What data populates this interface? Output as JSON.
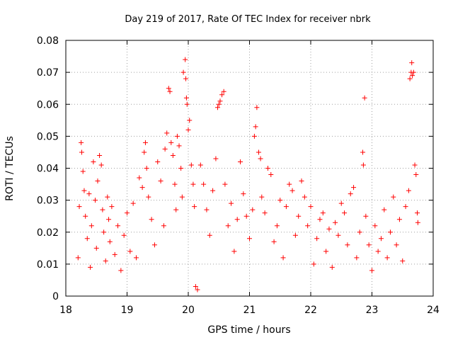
{
  "chart_data": {
    "type": "scatter",
    "title": "Day 219 of 2017, Rate Of TEC Index for receiver nbrk",
    "xlabel": "GPS time / hours",
    "ylabel": "ROTI / TECUs",
    "xlim": [
      18,
      24
    ],
    "ylim": [
      0,
      0.08
    ],
    "xticks": [
      18,
      19,
      20,
      21,
      22,
      23,
      24
    ],
    "xtick_labels": [
      "18",
      "19",
      "20",
      "21",
      "22",
      "23",
      "24"
    ],
    "yticks": [
      0,
      0.01,
      0.02,
      0.03,
      0.04,
      0.05,
      0.06,
      0.07,
      0.08
    ],
    "ytick_labels": [
      "0",
      "0.01",
      "0.02",
      "0.03",
      "0.04",
      "0.05",
      "0.06",
      "0.07",
      "0.08"
    ],
    "grid": true,
    "marker": "+",
    "color": "#ff0000",
    "series": [
      {
        "name": "ROTI",
        "points": [
          [
            18.2,
            0.012
          ],
          [
            18.22,
            0.028
          ],
          [
            18.25,
            0.048
          ],
          [
            18.26,
            0.045
          ],
          [
            18.28,
            0.039
          ],
          [
            18.3,
            0.033
          ],
          [
            18.32,
            0.025
          ],
          [
            18.35,
            0.018
          ],
          [
            18.38,
            0.032
          ],
          [
            18.4,
            0.009
          ],
          [
            18.42,
            0.022
          ],
          [
            18.45,
            0.042
          ],
          [
            18.48,
            0.03
          ],
          [
            18.5,
            0.015
          ],
          [
            18.52,
            0.036
          ],
          [
            18.55,
            0.044
          ],
          [
            18.58,
            0.041
          ],
          [
            18.6,
            0.027
          ],
          [
            18.62,
            0.02
          ],
          [
            18.65,
            0.011
          ],
          [
            18.68,
            0.031
          ],
          [
            18.7,
            0.024
          ],
          [
            18.72,
            0.017
          ],
          [
            18.75,
            0.028
          ],
          [
            18.8,
            0.013
          ],
          [
            18.85,
            0.022
          ],
          [
            18.9,
            0.008
          ],
          [
            18.95,
            0.019
          ],
          [
            19.0,
            0.026
          ],
          [
            19.05,
            0.014
          ],
          [
            19.1,
            0.029
          ],
          [
            19.15,
            0.012
          ],
          [
            19.2,
            0.037
          ],
          [
            19.25,
            0.034
          ],
          [
            19.28,
            0.045
          ],
          [
            19.3,
            0.048
          ],
          [
            19.32,
            0.04
          ],
          [
            19.35,
            0.031
          ],
          [
            19.4,
            0.024
          ],
          [
            19.45,
            0.016
          ],
          [
            19.5,
            0.042
          ],
          [
            19.55,
            0.036
          ],
          [
            19.6,
            0.022
          ],
          [
            19.62,
            0.046
          ],
          [
            19.65,
            0.051
          ],
          [
            19.68,
            0.065
          ],
          [
            19.7,
            0.064
          ],
          [
            19.72,
            0.048
          ],
          [
            19.75,
            0.044
          ],
          [
            19.78,
            0.035
          ],
          [
            19.8,
            0.027
          ],
          [
            19.82,
            0.05
          ],
          [
            19.85,
            0.047
          ],
          [
            19.88,
            0.04
          ],
          [
            19.9,
            0.031
          ],
          [
            19.92,
            0.07
          ],
          [
            19.95,
            0.074
          ],
          [
            19.96,
            0.068
          ],
          [
            19.97,
            0.062
          ],
          [
            19.98,
            0.06
          ],
          [
            20.0,
            0.052
          ],
          [
            20.02,
            0.055
          ],
          [
            20.05,
            0.041
          ],
          [
            20.08,
            0.035
          ],
          [
            20.1,
            0.028
          ],
          [
            20.12,
            0.003
          ],
          [
            20.15,
            0.002
          ],
          [
            20.2,
            0.041
          ],
          [
            20.25,
            0.035
          ],
          [
            20.3,
            0.027
          ],
          [
            20.35,
            0.019
          ],
          [
            20.4,
            0.033
          ],
          [
            20.45,
            0.043
          ],
          [
            20.48,
            0.059
          ],
          [
            20.5,
            0.06
          ],
          [
            20.52,
            0.061
          ],
          [
            20.55,
            0.063
          ],
          [
            20.58,
            0.064
          ],
          [
            20.6,
            0.035
          ],
          [
            20.65,
            0.022
          ],
          [
            20.7,
            0.029
          ],
          [
            20.75,
            0.014
          ],
          [
            20.8,
            0.024
          ],
          [
            20.85,
            0.042
          ],
          [
            20.9,
            0.032
          ],
          [
            20.95,
            0.025
          ],
          [
            21.0,
            0.018
          ],
          [
            21.05,
            0.027
          ],
          [
            21.08,
            0.05
          ],
          [
            21.1,
            0.053
          ],
          [
            21.12,
            0.059
          ],
          [
            21.15,
            0.045
          ],
          [
            21.18,
            0.043
          ],
          [
            21.2,
            0.031
          ],
          [
            21.25,
            0.026
          ],
          [
            21.3,
            0.04
          ],
          [
            21.35,
            0.038
          ],
          [
            21.4,
            0.017
          ],
          [
            21.45,
            0.022
          ],
          [
            21.5,
            0.03
          ],
          [
            21.55,
            0.012
          ],
          [
            21.6,
            0.028
          ],
          [
            21.65,
            0.035
          ],
          [
            21.7,
            0.033
          ],
          [
            21.75,
            0.019
          ],
          [
            21.8,
            0.025
          ],
          [
            21.85,
            0.036
          ],
          [
            21.9,
            0.031
          ],
          [
            21.95,
            0.022
          ],
          [
            22.0,
            0.028
          ],
          [
            22.05,
            0.01
          ],
          [
            22.1,
            0.018
          ],
          [
            22.15,
            0.024
          ],
          [
            22.2,
            0.026
          ],
          [
            22.25,
            0.014
          ],
          [
            22.3,
            0.021
          ],
          [
            22.35,
            0.009
          ],
          [
            22.4,
            0.023
          ],
          [
            22.45,
            0.019
          ],
          [
            22.5,
            0.029
          ],
          [
            22.55,
            0.026
          ],
          [
            22.6,
            0.016
          ],
          [
            22.65,
            0.032
          ],
          [
            22.7,
            0.034
          ],
          [
            22.75,
            0.012
          ],
          [
            22.8,
            0.02
          ],
          [
            22.85,
            0.045
          ],
          [
            22.86,
            0.041
          ],
          [
            22.88,
            0.062
          ],
          [
            22.9,
            0.025
          ],
          [
            22.95,
            0.016
          ],
          [
            23.0,
            0.008
          ],
          [
            23.05,
            0.022
          ],
          [
            23.1,
            0.014
          ],
          [
            23.15,
            0.018
          ],
          [
            23.2,
            0.027
          ],
          [
            23.25,
            0.012
          ],
          [
            23.3,
            0.02
          ],
          [
            23.35,
            0.031
          ],
          [
            23.4,
            0.016
          ],
          [
            23.45,
            0.024
          ],
          [
            23.5,
            0.011
          ],
          [
            23.55,
            0.028
          ],
          [
            23.6,
            0.033
          ],
          [
            23.62,
            0.068
          ],
          [
            23.64,
            0.07
          ],
          [
            23.65,
            0.073
          ],
          [
            23.66,
            0.069
          ],
          [
            23.68,
            0.07
          ],
          [
            23.7,
            0.041
          ],
          [
            23.72,
            0.038
          ],
          [
            23.74,
            0.026
          ],
          [
            23.75,
            0.023
          ]
        ]
      }
    ]
  }
}
